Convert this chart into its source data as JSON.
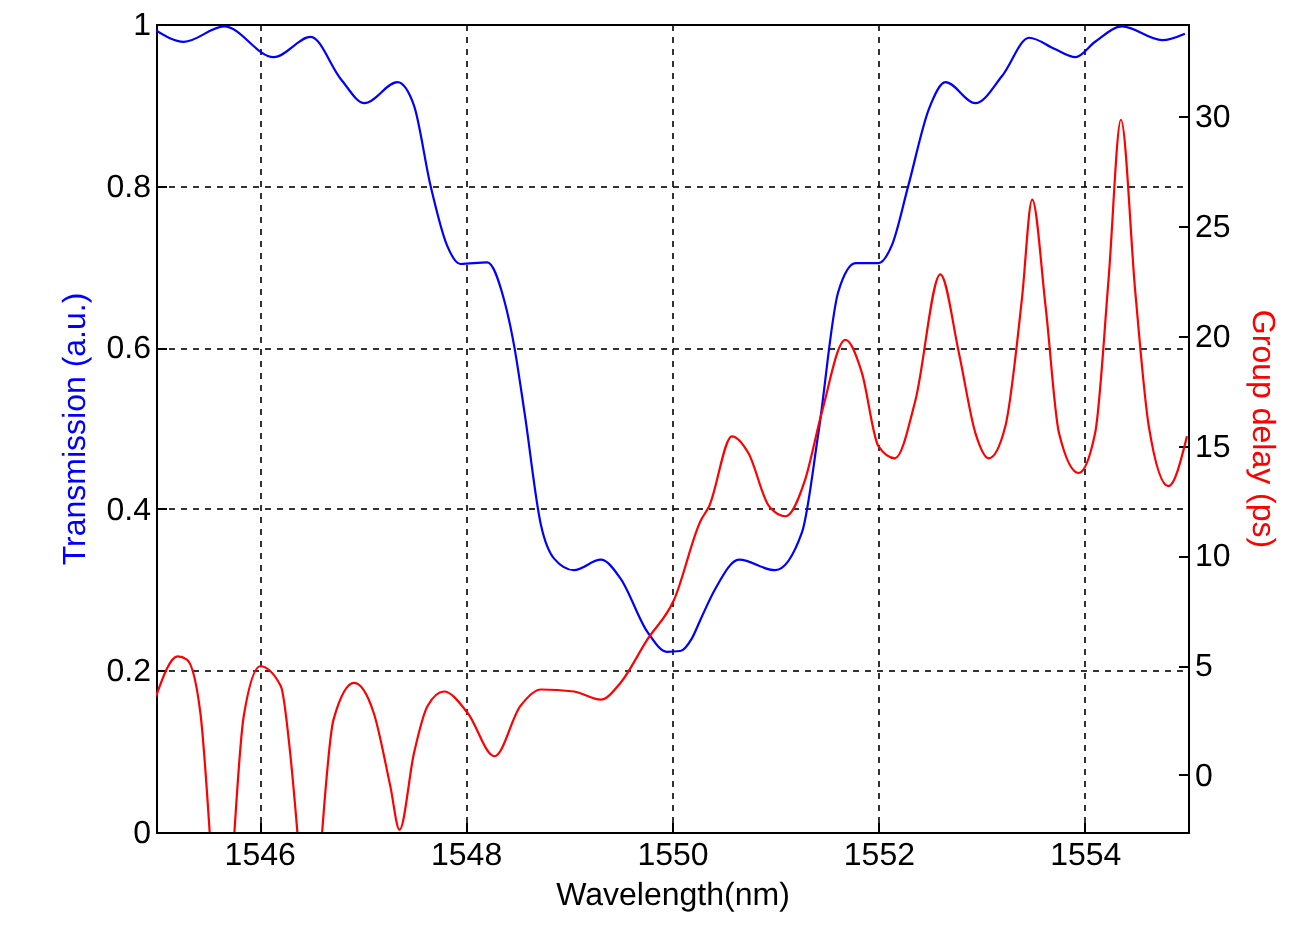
{
  "chart_data": {
    "type": "line",
    "xlabel": "Wavelength(nm)",
    "ylabel": "Transmission (a.u.)",
    "y2label": "Group delay (ps)",
    "xlim": [
      1545,
      1555
    ],
    "xticks": [
      1546,
      1548,
      1550,
      1552,
      1554
    ],
    "ylim": [
      0,
      1
    ],
    "yticks": [
      0,
      0.2,
      0.4,
      0.6,
      0.8,
      1
    ],
    "y2lim": [
      -2.6,
      34.2
    ],
    "y2ticks": [
      0,
      5,
      10,
      15,
      20,
      25,
      30
    ],
    "grid": true,
    "line_style": "solid",
    "marker": "none",
    "series": [
      {
        "type": "line",
        "color": "#0000ff",
        "x": [
          1545.0,
          1545.27,
          1545.66,
          1546.14,
          1546.5,
          1546.79,
          1547.02,
          1547.34,
          1547.5,
          1547.66,
          1547.82,
          1547.95,
          1548.21,
          1548.37,
          1548.47,
          1548.57,
          1548.73,
          1548.86,
          1549.05,
          1549.31,
          1549.5,
          1549.76,
          1549.95,
          1550.08,
          1550.19,
          1550.28,
          1550.42,
          1550.65,
          1551.0,
          1551.26,
          1551.42,
          1551.61,
          1551.78,
          1552.0,
          1552.13,
          1552.29,
          1552.49,
          1552.65,
          1552.94,
          1553.2,
          1553.46,
          1553.71,
          1553.91,
          1554.1,
          1554.36,
          1554.75,
          1554.97
        ],
        "values": [
          0.992,
          0.978,
          0.997,
          0.959,
          0.984,
          0.932,
          0.902,
          0.928,
          0.899,
          0.8,
          0.726,
          0.703,
          0.705,
          0.66,
          0.602,
          0.52,
          0.38,
          0.338,
          0.324,
          0.337,
          0.314,
          0.248,
          0.223,
          0.224,
          0.239,
          0.264,
          0.301,
          0.337,
          0.324,
          0.371,
          0.495,
          0.668,
          0.704,
          0.704,
          0.726,
          0.8,
          0.895,
          0.928,
          0.902,
          0.936,
          0.983,
          0.969,
          0.959,
          0.978,
          0.997,
          0.98,
          0.988
        ]
      },
      {
        "type": "line",
        "color": "#ff0000",
        "axis": "y2",
        "x": [
          1545.0,
          1545.21,
          1545.3,
          1545.43,
          1545.52,
          1545.64,
          1545.76,
          1545.85,
          1546.01,
          1546.21,
          1546.3,
          1546.37,
          1546.49,
          1546.61,
          1546.72,
          1546.92,
          1547.11,
          1547.27,
          1547.36,
          1547.5,
          1547.63,
          1547.79,
          1548.02,
          1548.28,
          1548.53,
          1548.73,
          1549.05,
          1549.31,
          1549.5,
          1549.76,
          1550.02,
          1550.28,
          1550.36,
          1550.58,
          1550.74,
          1550.94,
          1551.1,
          1551.29,
          1551.45,
          1551.68,
          1551.84,
          1552.0,
          1552.16,
          1552.36,
          1552.6,
          1552.78,
          1552.94,
          1553.07,
          1553.23,
          1553.39,
          1553.49,
          1553.62,
          1553.75,
          1553.94,
          1554.1,
          1554.23,
          1554.35,
          1554.49,
          1554.62,
          1554.81,
          1554.99
        ],
        "values": [
          3.58,
          5.4,
          5.25,
          2.82,
          -2.6,
          null,
          -2.6,
          2.67,
          4.95,
          4.04,
          1.0,
          -2.6,
          null,
          -2.6,
          2.52,
          4.19,
          2.82,
          -0.5,
          -2.5,
          1.0,
          3.13,
          3.8,
          2.82,
          0.85,
          3.13,
          3.89,
          3.8,
          3.43,
          4.19,
          6.16,
          7.98,
          11.6,
          12.24,
          15.42,
          14.66,
          12.24,
          11.78,
          13.45,
          16.48,
          19.82,
          18.31,
          14.97,
          14.42,
          17.09,
          22.8,
          19.22,
          15.57,
          14.42,
          15.88,
          21.65,
          26.2,
          21.34,
          15.57,
          13.75,
          15.57,
          22.56,
          29.84,
          21.95,
          15.88,
          13.15,
          15.42
        ]
      }
    ]
  }
}
